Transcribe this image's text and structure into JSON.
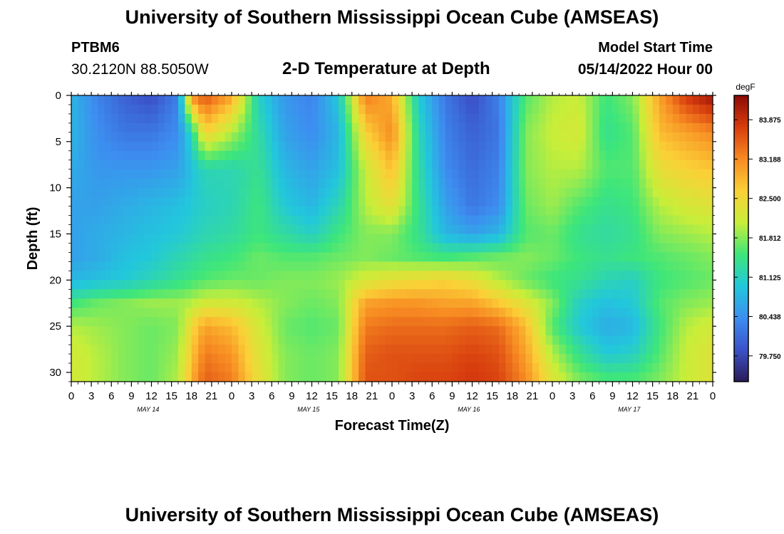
{
  "header": {
    "title": "University of Southern Mississippi Ocean Cube (AMSEAS)",
    "station": "PTBM6",
    "coords": "30.2120N  88.5050W",
    "subtitle": "2-D Temperature at Depth",
    "model_start_label": "Model Start Time",
    "model_start_value": "05/14/2022 Hour 00"
  },
  "footer": {
    "title": "University of Southern Mississippi Ocean Cube (AMSEAS)"
  },
  "colors": {
    "ramp": [
      "#2b1b57",
      "#3b52c9",
      "#3d8ef0",
      "#22c7dc",
      "#3ee67a",
      "#c8ee39",
      "#fbd037",
      "#f78a22",
      "#d73d0e",
      "#8c0a06"
    ]
  },
  "chart_data": {
    "type": "heatmap",
    "xlabel": "Forecast Time(Z)",
    "ylabel": "Depth (ft)",
    "x_tick_labels": [
      "0",
      "3",
      "6",
      "9",
      "12",
      "15",
      "18",
      "21",
      "0",
      "3",
      "6",
      "9",
      "12",
      "15",
      "18",
      "21",
      "0",
      "3",
      "6",
      "9",
      "12",
      "15",
      "18",
      "21",
      "0",
      "3",
      "6",
      "9",
      "12",
      "15",
      "18",
      "21",
      "0"
    ],
    "date_labels": [
      "MAY 14",
      "MAY 15",
      "MAY 16",
      "MAY 17"
    ],
    "xlim": [
      0,
      96
    ],
    "y_ticks": [
      0,
      5,
      10,
      15,
      20,
      25,
      30
    ],
    "ylim": [
      0,
      31
    ],
    "colorbar": {
      "unit": "degF",
      "ticks": [
        "83.875",
        "83.188",
        "82.500",
        "81.812",
        "81.125",
        "80.438",
        "79.750"
      ],
      "range": [
        79.3,
        84.3
      ]
    },
    "depth_rows": [
      0,
      4,
      8,
      12,
      15,
      17.5,
      20,
      22.5,
      25,
      28,
      31
    ],
    "time_cols": [
      0,
      4,
      8,
      12,
      16,
      18,
      20,
      24,
      28,
      32,
      36,
      40,
      44,
      48,
      52,
      56,
      60,
      64,
      68,
      72,
      76,
      80,
      84,
      88,
      92,
      96
    ],
    "values_degF": [
      [
        80.8,
        80.3,
        80.0,
        79.8,
        80.3,
        83.2,
        83.6,
        83.0,
        81.1,
        80.5,
        80.3,
        81.0,
        83.3,
        82.9,
        81.0,
        80.2,
        79.8,
        80.3,
        81.6,
        82.0,
        82.1,
        81.5,
        81.8,
        83.0,
        83.8,
        84.2
      ],
      [
        80.8,
        80.4,
        80.2,
        80.2,
        80.4,
        81.2,
        82.6,
        82.0,
        81.3,
        80.6,
        80.4,
        80.8,
        82.6,
        83.2,
        81.2,
        80.3,
        80.0,
        80.2,
        81.8,
        82.1,
        82.2,
        81.4,
        81.6,
        82.8,
        83.0,
        83.2
      ],
      [
        80.7,
        80.5,
        80.5,
        80.5,
        80.6,
        80.9,
        81.2,
        81.2,
        81.4,
        80.8,
        80.6,
        80.9,
        82.1,
        82.8,
        81.3,
        80.4,
        80.1,
        80.3,
        81.8,
        82.0,
        82.0,
        81.6,
        81.6,
        82.4,
        82.6,
        82.7
      ],
      [
        80.6,
        80.6,
        80.7,
        80.8,
        80.9,
        81.0,
        81.1,
        81.2,
        81.5,
        81.0,
        80.8,
        81.2,
        82.0,
        82.4,
        81.4,
        80.6,
        80.2,
        80.4,
        81.7,
        81.9,
        81.6,
        81.4,
        81.5,
        82.0,
        82.2,
        82.3
      ],
      [
        80.6,
        80.7,
        80.8,
        80.9,
        81.0,
        81.1,
        81.2,
        81.3,
        81.5,
        81.3,
        81.1,
        81.5,
        81.8,
        81.8,
        81.4,
        80.8,
        80.6,
        80.8,
        81.6,
        81.7,
        81.4,
        81.3,
        81.4,
        81.8,
        81.9,
        82.0
      ],
      [
        80.6,
        80.7,
        80.9,
        81.0,
        81.2,
        81.3,
        81.4,
        81.5,
        81.7,
        81.6,
        81.6,
        81.7,
        81.8,
        81.7,
        81.6,
        81.5,
        81.6,
        81.7,
        81.8,
        81.7,
        81.5,
        81.4,
        81.5,
        81.6,
        81.7,
        81.8
      ],
      [
        80.8,
        80.9,
        81.0,
        81.2,
        81.4,
        81.5,
        81.6,
        81.7,
        81.7,
        81.8,
        81.8,
        81.9,
        82.2,
        82.4,
        82.5,
        82.6,
        82.4,
        82.0,
        81.7,
        81.5,
        81.4,
        81.2,
        81.1,
        81.5,
        81.6,
        81.7
      ],
      [
        81.5,
        81.7,
        81.8,
        81.9,
        81.9,
        82.0,
        82.2,
        82.2,
        82.0,
        81.8,
        81.7,
        81.8,
        83.0,
        83.1,
        83.1,
        83.0,
        83.0,
        82.7,
        82.3,
        81.8,
        81.1,
        80.9,
        81.0,
        81.6,
        81.8,
        81.9
      ],
      [
        82.0,
        81.9,
        81.8,
        81.7,
        81.8,
        82.5,
        83.0,
        82.8,
        82.2,
        81.7,
        81.6,
        81.7,
        83.3,
        83.4,
        83.4,
        83.4,
        83.5,
        83.4,
        82.8,
        81.6,
        81.0,
        80.7,
        80.8,
        81.5,
        82.0,
        82.2
      ],
      [
        82.2,
        82.0,
        81.8,
        81.7,
        81.9,
        82.7,
        83.3,
        83.1,
        82.3,
        81.8,
        81.7,
        81.8,
        83.5,
        83.6,
        83.6,
        83.6,
        83.7,
        83.6,
        83.0,
        82.0,
        81.4,
        81.0,
        81.1,
        81.6,
        82.1,
        82.3
      ],
      [
        82.2,
        82.0,
        81.8,
        81.7,
        82.0,
        82.9,
        83.5,
        83.3,
        82.4,
        81.8,
        81.7,
        81.8,
        83.6,
        83.6,
        83.7,
        83.7,
        83.8,
        83.7,
        83.2,
        82.3,
        81.8,
        81.6,
        81.6,
        81.8,
        82.1,
        82.3
      ]
    ]
  }
}
